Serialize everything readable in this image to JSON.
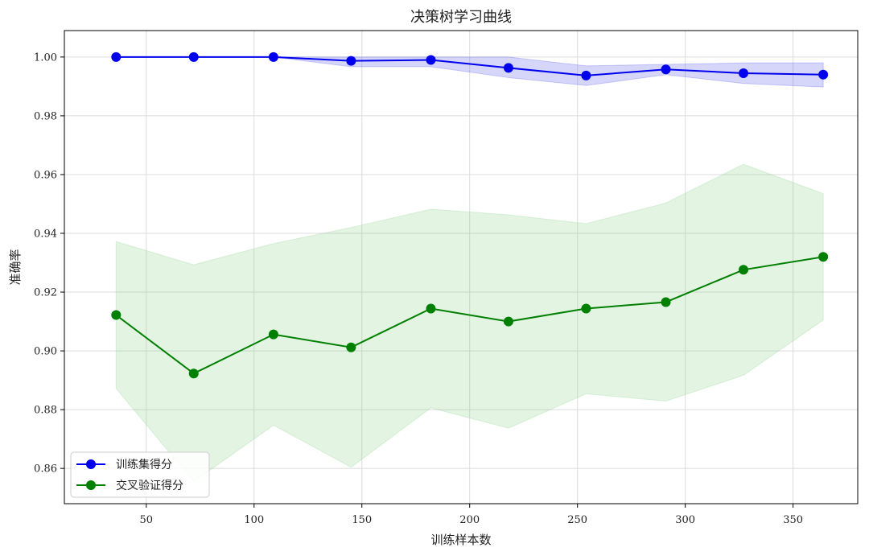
{
  "chart_data": {
    "type": "line",
    "title": "决策树学习曲线",
    "xlabel": "训练样本数",
    "ylabel": "准确率",
    "xlim": [
      12,
      380
    ],
    "ylim": [
      0.848,
      1.009
    ],
    "xticks": [
      50,
      100,
      150,
      200,
      250,
      300,
      350
    ],
    "yticks": [
      0.86,
      0.88,
      0.9,
      0.92,
      0.94,
      0.96,
      0.98,
      1.0
    ],
    "grid": true,
    "legend_position": "lower-left",
    "x": [
      36,
      72,
      109,
      145,
      182,
      218,
      254,
      291,
      327,
      364
    ],
    "series": [
      {
        "name": "训练集得分",
        "color": "#0000ee",
        "band_color": "#4444ee",
        "values": [
          1.0,
          1.0,
          1.0,
          0.9987,
          0.999,
          0.9963,
          0.9937,
          0.9958,
          0.9945,
          0.994
        ],
        "upper": [
          1.0,
          1.0,
          1.0,
          1.0,
          1.0,
          1.0,
          0.997,
          0.9975,
          0.998,
          0.998
        ],
        "lower": [
          1.0,
          1.0,
          1.0,
          0.9967,
          0.9967,
          0.993,
          0.9903,
          0.994,
          0.991,
          0.9898
        ]
      },
      {
        "name": "交叉验证得分",
        "color": "#008000",
        "band_color": "#7fcf7f",
        "values": [
          0.9122,
          0.8923,
          0.9056,
          0.9012,
          0.9144,
          0.91,
          0.9144,
          0.9166,
          0.9276,
          0.932
        ],
        "upper": [
          0.9372,
          0.9293,
          0.9365,
          0.942,
          0.9482,
          0.9463,
          0.9433,
          0.9503,
          0.9635,
          0.9535
        ],
        "lower": [
          0.8872,
          0.8555,
          0.8747,
          0.8604,
          0.8806,
          0.8737,
          0.8854,
          0.8829,
          0.8917,
          0.9105
        ]
      }
    ]
  }
}
